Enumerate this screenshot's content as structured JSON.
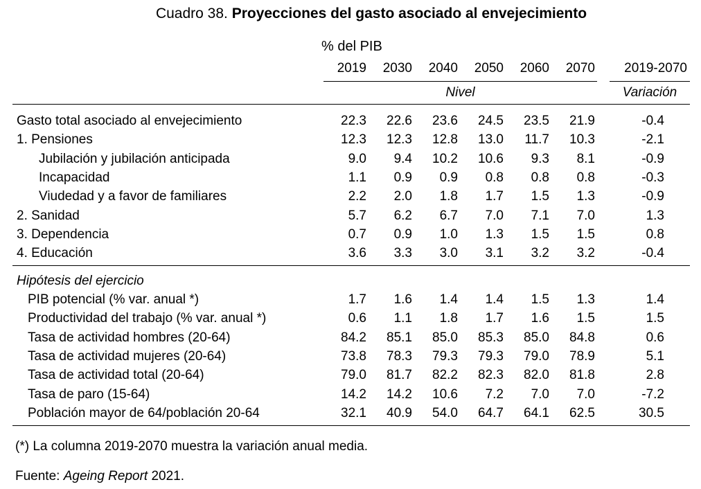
{
  "title": {
    "prefix": "Cuadro 38.",
    "bold": "Proyecciones del gasto asociado al envejecimiento"
  },
  "unit_label": "% del PIB",
  "columns": [
    "2019",
    "2030",
    "2040",
    "2050",
    "2060",
    "2070"
  ],
  "variation_column": "2019-2070",
  "subheaders": {
    "level": "Nivel",
    "variation": "Variación"
  },
  "section1": [
    {
      "label": "Gasto total asociado al envejecimiento",
      "values": [
        "22.3",
        "22.6",
        "23.6",
        "24.5",
        "23.5",
        "21.9"
      ],
      "variation": "-0.4"
    },
    {
      "label": "1. Pensiones",
      "values": [
        "12.3",
        "12.3",
        "12.8",
        "13.0",
        "11.7",
        "10.3"
      ],
      "variation": "-2.1"
    },
    {
      "label": "Jubilación y jubilación anticipada",
      "values": [
        "9.0",
        "9.4",
        "10.2",
        "10.6",
        "9.3",
        "8.1"
      ],
      "variation": "-0.9"
    },
    {
      "label": "Incapacidad",
      "values": [
        "1.1",
        "0.9",
        "0.9",
        "0.8",
        "0.8",
        "0.8"
      ],
      "variation": "-0.3"
    },
    {
      "label": "Viudedad y a favor de familiares",
      "values": [
        "2.2",
        "2.0",
        "1.8",
        "1.7",
        "1.5",
        "1.3"
      ],
      "variation": "-0.9"
    },
    {
      "label": "2. Sanidad",
      "values": [
        "5.7",
        "6.2",
        "6.7",
        "7.0",
        "7.1",
        "7.0"
      ],
      "variation": "1.3"
    },
    {
      "label": "3. Dependencia",
      "values": [
        "0.7",
        "0.9",
        "1.0",
        "1.3",
        "1.5",
        "1.5"
      ],
      "variation": "0.8"
    },
    {
      "label": "4. Educación",
      "values": [
        "3.6",
        "3.3",
        "3.0",
        "3.1",
        "3.2",
        "3.2"
      ],
      "variation": "-0.4"
    }
  ],
  "section2_title": "Hipótesis del ejercicio",
  "section2": [
    {
      "label": "PIB potencial (% var. anual *)",
      "values": [
        "1.7",
        "1.6",
        "1.4",
        "1.4",
        "1.5",
        "1.3"
      ],
      "variation": "1.4"
    },
    {
      "label": "Productividad del trabajo (% var. anual *)",
      "values": [
        "0.6",
        "1.1",
        "1.8",
        "1.7",
        "1.6",
        "1.5"
      ],
      "variation": "1.5"
    },
    {
      "label": "Tasa de actividad hombres (20-64)",
      "values": [
        "84.2",
        "85.1",
        "85.0",
        "85.3",
        "85.0",
        "84.8"
      ],
      "variation": "0.6"
    },
    {
      "label": "Tasa de actividad mujeres (20-64)",
      "values": [
        "73.8",
        "78.3",
        "79.3",
        "79.3",
        "79.0",
        "78.9"
      ],
      "variation": "5.1"
    },
    {
      "label": "Tasa de actividad total (20-64)",
      "values": [
        "79.0",
        "81.7",
        "82.2",
        "82.3",
        "82.0",
        "81.8"
      ],
      "variation": "2.8"
    },
    {
      "label": "Tasa de paro (15-64)",
      "values": [
        "14.2",
        "14.2",
        "10.6",
        "7.2",
        "7.0",
        "7.0"
      ],
      "variation": "-7.2"
    },
    {
      "label": "Población mayor de 64/población 20-64",
      "values": [
        "32.1",
        "40.9",
        "54.0",
        "64.7",
        "64.1",
        "62.5"
      ],
      "variation": "30.5"
    }
  ],
  "footnote": "(*) La columna 2019-2070 muestra la variación anual media.",
  "source": {
    "prefix": "Fuente:",
    "italic": "Ageing Report",
    "suffix": "2021."
  }
}
